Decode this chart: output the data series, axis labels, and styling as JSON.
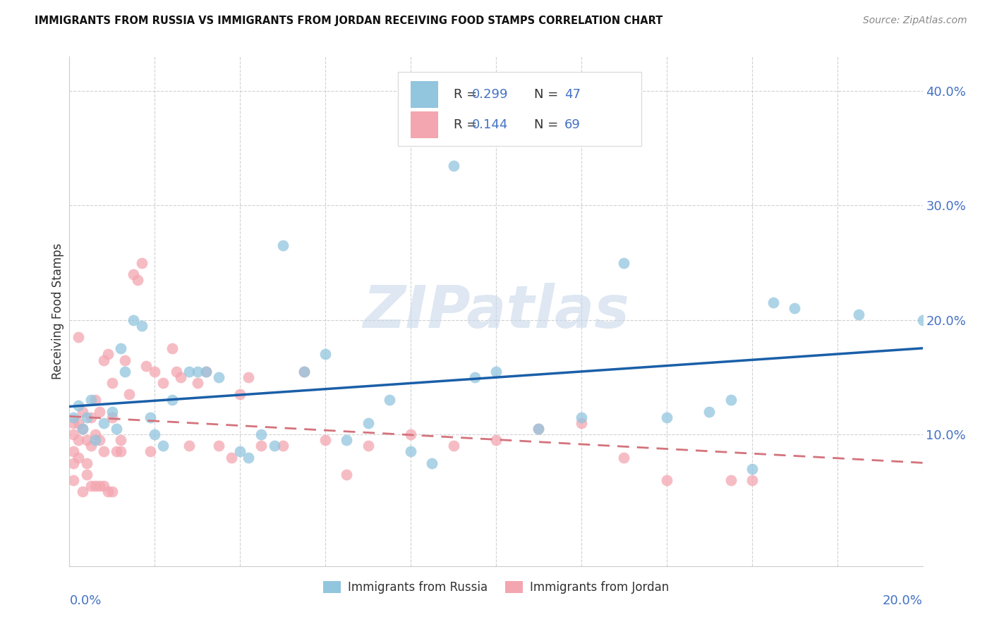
{
  "title": "IMMIGRANTS FROM RUSSIA VS IMMIGRANTS FROM JORDAN RECEIVING FOOD STAMPS CORRELATION CHART",
  "source": "Source: ZipAtlas.com",
  "ylabel": "Receiving Food Stamps",
  "xlim": [
    0.0,
    0.2
  ],
  "ylim": [
    -0.015,
    0.43
  ],
  "russia_color": "#92c5de",
  "jordan_color": "#f4a6b0",
  "russia_line_color": "#1a5fa8",
  "jordan_line_color": "#d4737c",
  "russia_scatter_alpha": 0.75,
  "jordan_scatter_alpha": 0.75,
  "scatter_size": 130,
  "watermark": "ZIPatlas",
  "watermark_color": "#c8d8ea",
  "legend_r_russia": "R = 0.299",
  "legend_n_russia": "N = 47",
  "legend_r_jordan": "R = 0.144",
  "legend_n_jordan": "N = 69",
  "legend_label_color": "#333333",
  "legend_value_color": "#4472c4",
  "russia_x": [
    0.001,
    0.002,
    0.003,
    0.004,
    0.005,
    0.006,
    0.008,
    0.01,
    0.011,
    0.012,
    0.013,
    0.015,
    0.017,
    0.019,
    0.02,
    0.022,
    0.024,
    0.028,
    0.03,
    0.032,
    0.035,
    0.04,
    0.042,
    0.045,
    0.048,
    0.05,
    0.055,
    0.06,
    0.065,
    0.07,
    0.075,
    0.08,
    0.085,
    0.09,
    0.095,
    0.1,
    0.11,
    0.12,
    0.13,
    0.14,
    0.15,
    0.155,
    0.16,
    0.165,
    0.17,
    0.185,
    0.2
  ],
  "russia_y": [
    0.115,
    0.125,
    0.105,
    0.115,
    0.13,
    0.095,
    0.11,
    0.12,
    0.105,
    0.175,
    0.155,
    0.2,
    0.195,
    0.115,
    0.1,
    0.09,
    0.13,
    0.155,
    0.155,
    0.155,
    0.15,
    0.085,
    0.08,
    0.1,
    0.09,
    0.265,
    0.155,
    0.17,
    0.095,
    0.11,
    0.13,
    0.085,
    0.075,
    0.335,
    0.15,
    0.155,
    0.105,
    0.115,
    0.25,
    0.115,
    0.12,
    0.13,
    0.07,
    0.215,
    0.21,
    0.205,
    0.2
  ],
  "jordan_x": [
    0.001,
    0.001,
    0.001,
    0.001,
    0.001,
    0.002,
    0.002,
    0.002,
    0.002,
    0.003,
    0.003,
    0.004,
    0.004,
    0.005,
    0.005,
    0.006,
    0.006,
    0.007,
    0.007,
    0.008,
    0.008,
    0.009,
    0.01,
    0.01,
    0.011,
    0.012,
    0.013,
    0.014,
    0.015,
    0.016,
    0.017,
    0.018,
    0.019,
    0.02,
    0.022,
    0.024,
    0.025,
    0.026,
    0.028,
    0.03,
    0.032,
    0.035,
    0.038,
    0.04,
    0.042,
    0.045,
    0.05,
    0.055,
    0.06,
    0.065,
    0.07,
    0.08,
    0.09,
    0.1,
    0.11,
    0.12,
    0.13,
    0.14,
    0.155,
    0.16,
    0.003,
    0.004,
    0.005,
    0.006,
    0.007,
    0.008,
    0.009,
    0.01,
    0.012
  ],
  "jordan_y": [
    0.11,
    0.1,
    0.085,
    0.075,
    0.06,
    0.11,
    0.095,
    0.08,
    0.185,
    0.12,
    0.105,
    0.095,
    0.075,
    0.115,
    0.09,
    0.1,
    0.13,
    0.12,
    0.095,
    0.165,
    0.085,
    0.17,
    0.115,
    0.145,
    0.085,
    0.095,
    0.165,
    0.135,
    0.24,
    0.235,
    0.25,
    0.16,
    0.085,
    0.155,
    0.145,
    0.175,
    0.155,
    0.15,
    0.09,
    0.145,
    0.155,
    0.09,
    0.08,
    0.135,
    0.15,
    0.09,
    0.09,
    0.155,
    0.095,
    0.065,
    0.09,
    0.1,
    0.09,
    0.095,
    0.105,
    0.11,
    0.08,
    0.06,
    0.06,
    0.06,
    0.05,
    0.065,
    0.055,
    0.055,
    0.055,
    0.055,
    0.05,
    0.05,
    0.085
  ]
}
